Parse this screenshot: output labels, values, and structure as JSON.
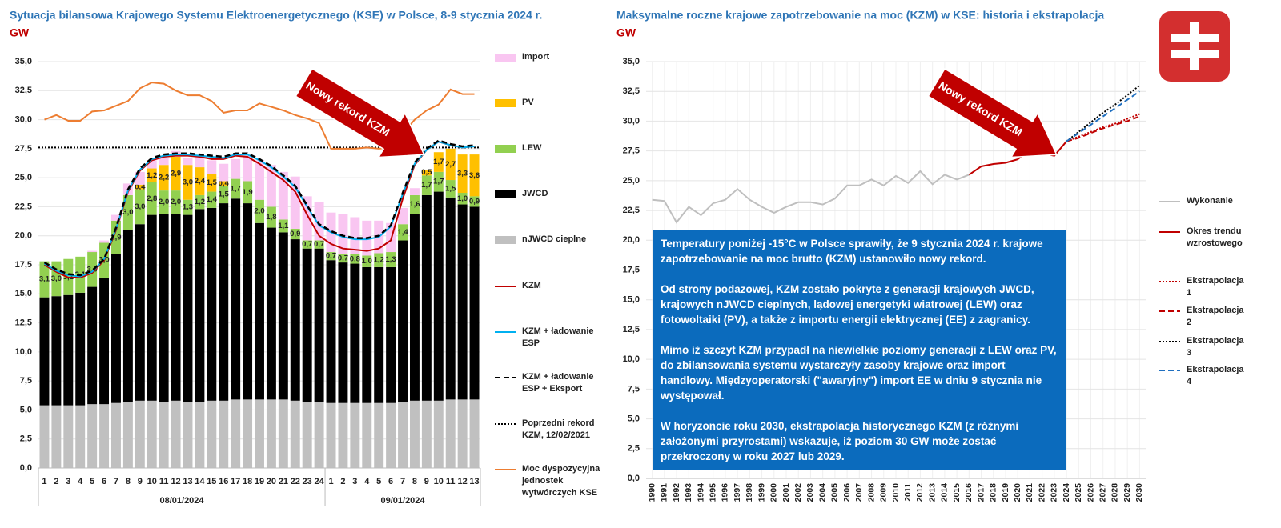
{
  "chart_data": [
    {
      "type": "bar",
      "stacked": true,
      "title": "Sytuacja bilansowa Krajowego Systemu Elektroenergetycznego (KSE) w Polsce, 8-9 stycznia 2024 r.",
      "unit": "GW",
      "annotation": "Nowy rekord KZM",
      "categories": [
        "1",
        "2",
        "3",
        "4",
        "5",
        "6",
        "7",
        "8",
        "9",
        "10",
        "11",
        "12",
        "13",
        "14",
        "15",
        "16",
        "17",
        "18",
        "19",
        "20",
        "21",
        "22",
        "23",
        "24",
        "1",
        "2",
        "3",
        "4",
        "5",
        "6",
        "7",
        "8",
        "9",
        "10",
        "11",
        "12",
        "13"
      ],
      "x_groups": [
        "08/01/2024",
        "09/01/2024"
      ],
      "ylim": [
        0,
        35
      ],
      "yticks": [
        {
          "value": 0,
          "label": "0,0"
        },
        {
          "value": 2.5,
          "label": "2,5"
        },
        {
          "value": 5,
          "label": "5,0"
        },
        {
          "value": 7.5,
          "label": "7,5"
        },
        {
          "value": 10,
          "label": "10,0"
        },
        {
          "value": 12.5,
          "label": "12,5"
        },
        {
          "value": 15,
          "label": "15,0"
        },
        {
          "value": 17.5,
          "label": "17,5"
        },
        {
          "value": 20,
          "label": "20,0"
        },
        {
          "value": 22.5,
          "label": "22,5"
        },
        {
          "value": 25,
          "label": "25,0"
        },
        {
          "value": 27.5,
          "label": "27,5"
        },
        {
          "value": 30,
          "label": "30,0"
        },
        {
          "value": 32.5,
          "label": "32,5"
        },
        {
          "value": 35,
          "label": "35,0"
        }
      ],
      "grid": true,
      "series": [
        {
          "name": "nJWCD cieplne",
          "color": "#c0c0c0",
          "values": [
            5.4,
            5.4,
            5.4,
            5.4,
            5.5,
            5.5,
            5.6,
            5.7,
            5.8,
            5.8,
            5.7,
            5.8,
            5.7,
            5.7,
            5.8,
            5.8,
            5.9,
            5.9,
            5.9,
            5.9,
            5.9,
            5.8,
            5.7,
            5.7,
            5.6,
            5.6,
            5.6,
            5.6,
            5.6,
            5.6,
            5.7,
            5.8,
            5.8,
            5.8,
            5.9,
            5.9,
            5.9
          ]
        },
        {
          "name": "JWCD",
          "color": "#000000",
          "values": [
            9.3,
            9.4,
            9.5,
            9.7,
            10.1,
            10.9,
            12.8,
            14.8,
            15.2,
            16.0,
            16.2,
            16.1,
            16.1,
            16.6,
            16.6,
            17.0,
            17.3,
            16.9,
            15.2,
            14.8,
            14.4,
            13.9,
            13.2,
            13.2,
            12.3,
            12.1,
            12.0,
            11.7,
            11.7,
            11.7,
            13.9,
            16.1,
            17.7,
            18.0,
            17.4,
            16.8,
            16.6
          ]
        },
        {
          "name": "LEW",
          "color": "#92d050",
          "values": [
            3.1,
            3.0,
            3.1,
            3.1,
            3.0,
            3.0,
            2.9,
            3.0,
            3.0,
            2.8,
            2.0,
            2.0,
            1.3,
            1.2,
            1.4,
            1.5,
            1.7,
            1.9,
            2.0,
            1.8,
            1.1,
            0.9,
            0.7,
            0.7,
            0.7,
            0.7,
            0.8,
            1.0,
            1.2,
            1.3,
            1.4,
            1.6,
            1.7,
            1.7,
            1.5,
            1.0,
            0.9
          ],
          "value_labels": [
            "3,1",
            "3,0",
            "3,1",
            "3,1",
            "3,0",
            "3,0",
            "2,9",
            "3,0",
            "3,0",
            "2,8",
            "2,0",
            "2,0",
            "1,3",
            "1,2",
            "1,4",
            "1,5",
            "1,7",
            "1,9",
            "2,0",
            "1,8",
            "1,1",
            "0,9",
            "0,7",
            "0,7",
            "0,7",
            "0,7",
            "0,8",
            "1,0",
            "1,2",
            "1,3",
            "1,4",
            "1,6",
            "1,7",
            "1,7",
            "1,5",
            "1,0",
            "0,9"
          ]
        },
        {
          "name": "PV",
          "color": "#ffc000",
          "values": [
            0,
            0,
            0,
            0,
            0,
            0,
            0,
            0,
            0.4,
            1.2,
            2.2,
            2.9,
            3.0,
            2.4,
            1.5,
            0.4,
            0,
            0,
            0,
            0,
            0,
            0,
            0,
            0,
            0,
            0,
            0,
            0,
            0,
            0,
            0,
            0,
            0.5,
            1.7,
            2.7,
            3.3,
            3.6
          ],
          "value_labels": [
            null,
            null,
            null,
            null,
            null,
            null,
            null,
            null,
            "0,4",
            "1,2",
            "2,2",
            "2,9",
            "3,0",
            "2,4",
            "1,5",
            "0,4",
            null,
            null,
            null,
            null,
            null,
            null,
            null,
            null,
            null,
            null,
            null,
            null,
            null,
            null,
            null,
            null,
            "0,5",
            "1,7",
            "2,7",
            "3,3",
            "3,6"
          ]
        },
        {
          "name": "Import",
          "color": "#f9c6f1",
          "values": [
            0,
            0,
            0,
            0,
            0.1,
            0.2,
            0.5,
            1.0,
            1.1,
            0.7,
            0.6,
            0.5,
            0.6,
            0.9,
            1.2,
            1.5,
            1.7,
            2.2,
            3.4,
            3.6,
            4.1,
            4.5,
            3.8,
            3.3,
            3.4,
            3.5,
            3.2,
            3.0,
            2.8,
            2.5,
            1.4,
            0.6,
            0,
            0,
            0,
            0,
            0
          ]
        }
      ],
      "lines": [
        {
          "name": "KZM",
          "color": "#c00000",
          "dash": "solid",
          "values": [
            17.5,
            16.9,
            16.4,
            16.4,
            16.8,
            17.9,
            20.5,
            23.8,
            25.6,
            26.5,
            26.8,
            26.9,
            26.9,
            26.8,
            26.6,
            26.6,
            26.9,
            26.8,
            26.2,
            25.5,
            24.8,
            23.8,
            21.8,
            20.0,
            19.3,
            18.9,
            18.8,
            18.7,
            18.9,
            19.6,
            23.2,
            26.1,
            27.4,
            28.1,
            27.8,
            27.6,
            27.7
          ]
        },
        {
          "name": "KZM + ładowanie ESP",
          "color": "#00b0f0",
          "dash": "solid",
          "values": [
            17.6,
            17.0,
            16.6,
            16.5,
            16.9,
            18.0,
            20.6,
            23.9,
            25.7,
            26.6,
            26.9,
            27.0,
            27.0,
            26.9,
            26.8,
            26.7,
            27.0,
            27.0,
            26.5,
            25.9,
            25.1,
            24.2,
            22.5,
            20.9,
            20.3,
            19.9,
            19.7,
            19.7,
            19.9,
            20.8,
            23.6,
            26.2,
            27.4,
            28.1,
            27.8,
            27.6,
            27.7
          ]
        },
        {
          "name": "KZM + ładowanie ESP + Eksport",
          "color": "#000000",
          "dash": "dashed",
          "values": [
            17.7,
            17.1,
            16.7,
            16.6,
            17.0,
            18.0,
            20.7,
            24.0,
            25.8,
            26.7,
            27.0,
            27.1,
            27.1,
            27.0,
            26.9,
            26.8,
            27.1,
            27.1,
            26.6,
            26.0,
            25.2,
            24.3,
            22.6,
            21.0,
            20.4,
            20.0,
            19.8,
            19.8,
            20.0,
            20.9,
            23.7,
            26.3,
            27.5,
            28.2,
            27.9,
            27.7,
            27.8
          ]
        },
        {
          "name": "Moc dyspozycyjna jednostek wytwórczych KSE",
          "color": "#ed7d31",
          "dash": "solid",
          "values": [
            30.0,
            30.4,
            29.9,
            29.9,
            30.7,
            30.8,
            31.2,
            31.6,
            32.7,
            33.2,
            33.1,
            32.5,
            32.1,
            32.1,
            31.6,
            30.6,
            30.8,
            30.8,
            31.4,
            31.1,
            30.8,
            30.4,
            30.1,
            29.7,
            27.5,
            27.5,
            27.5,
            27.6,
            27.5,
            27.6,
            28.8,
            30.0,
            30.8,
            31.3,
            32.6,
            32.2,
            32.2
          ]
        }
      ],
      "reference": {
        "name": "Poprzedni rekord KZM, 12/02/2021",
        "value": 27.6,
        "color": "#000000",
        "dash": "dotted"
      }
    },
    {
      "type": "line",
      "title": "Maksymalne roczne krajowe zapotrzebowanie na moc (KZM) w KSE: historia i ekstrapolacja",
      "unit": "GW",
      "annotation": "Nowy rekord KZM",
      "text_box": [
        "Temperatury poniżej -15°C w Polsce sprawiły, że 9 stycznia 2024 r. krajowe zapotrzebowanie na moc brutto (KZM) ustanowiło nowy rekord.",
        "Od strony podazowej, KZM zostało pokryte z generacji krajowych JWCD, krajowych nJWCD cieplnych, lądowej energetyki wiatrowej (LEW) oraz fotowoltaiki (PV), a także z importu energii elektrycznej (EE) z zagranicy.",
        "Mimo iż szczyt KZM przypadł na niewielkie poziomy generacji z LEW oraz PV, do zbilansowania systemu wystarczyły zasoby krajowe oraz import handlowy. Międzyoperatorski (\"awaryjny\") import EE w dniu 9 stycznia nie występował.",
        "W horyzoncie roku 2030, ekstrapolacja historycznego KZM (z różnymi założonymi przyrostami) wskazuje, iż poziom 30 GW może zostać przekroczony w roku 2027 lub 2029."
      ],
      "x": [
        1990,
        1991,
        1992,
        1993,
        1994,
        1995,
        1996,
        1997,
        1998,
        1999,
        2000,
        2001,
        2002,
        2003,
        2004,
        2005,
        2006,
        2007,
        2008,
        2009,
        2010,
        2011,
        2012,
        2013,
        2014,
        2015,
        2016,
        2017,
        2018,
        2019,
        2020,
        2021,
        2022,
        2023,
        2024,
        2025,
        2026,
        2027,
        2028,
        2029,
        2030
      ],
      "xlim": [
        1989.5,
        2030.5
      ],
      "xticks": [
        1990,
        1991,
        1992,
        1993,
        1994,
        1995,
        1996,
        1997,
        1998,
        1999,
        2000,
        2001,
        2002,
        2003,
        2004,
        2005,
        2006,
        2007,
        2008,
        2009,
        2010,
        2011,
        2012,
        2013,
        2014,
        2015,
        2016,
        2017,
        2018,
        2019,
        2020,
        2021,
        2022,
        2023,
        2024,
        2025,
        2026,
        2027,
        2028,
        2029,
        2030
      ],
      "ylim": [
        0,
        35
      ],
      "yticks": [
        {
          "value": 0,
          "label": "0,0"
        },
        {
          "value": 2.5,
          "label": "2,5"
        },
        {
          "value": 5,
          "label": "5,0"
        },
        {
          "value": 7.5,
          "label": "7,5"
        },
        {
          "value": 10,
          "label": "10,0"
        },
        {
          "value": 12.5,
          "label": "12,5"
        },
        {
          "value": 15,
          "label": "15,0"
        },
        {
          "value": 17.5,
          "label": "17,5"
        },
        {
          "value": 20,
          "label": "20,0"
        },
        {
          "value": 22.5,
          "label": "22,5"
        },
        {
          "value": 25,
          "label": "25,0"
        },
        {
          "value": 27.5,
          "label": "27,5"
        },
        {
          "value": 30,
          "label": "30,0"
        },
        {
          "value": 32.5,
          "label": "32,5"
        },
        {
          "value": 35,
          "label": "35,0"
        }
      ],
      "grid": true,
      "series": [
        {
          "name": "Wykonanie",
          "color": "#bfbfbf",
          "dash": "solid",
          "values": [
            23.4,
            23.3,
            21.5,
            22.8,
            22.1,
            23.1,
            23.4,
            24.3,
            23.4,
            22.8,
            22.3,
            22.8,
            23.2,
            23.2,
            23.0,
            23.5,
            24.6,
            24.6,
            25.1,
            24.6,
            25.4,
            24.8,
            25.8,
            24.7,
            25.5,
            25.1,
            25.5,
            null,
            null,
            null,
            null,
            null,
            null,
            null,
            null,
            null,
            null,
            null,
            null,
            null,
            null
          ]
        },
        {
          "name": "Okres trendu wzrostowego",
          "color": "#c00000",
          "dash": "solid",
          "values": [
            null,
            null,
            null,
            null,
            null,
            null,
            null,
            null,
            null,
            null,
            null,
            null,
            null,
            null,
            null,
            null,
            null,
            null,
            null,
            null,
            null,
            null,
            null,
            null,
            null,
            null,
            25.5,
            26.2,
            26.4,
            26.5,
            26.8,
            27.6,
            27.3,
            27.1,
            28.3,
            null,
            null,
            null,
            null,
            null,
            null
          ]
        },
        {
          "name": "Ekstrapolacja 1",
          "color": "#c00000",
          "dash": "dotted",
          "values": [
            null,
            null,
            null,
            null,
            null,
            null,
            null,
            null,
            null,
            null,
            null,
            null,
            null,
            null,
            null,
            null,
            null,
            null,
            null,
            null,
            null,
            null,
            null,
            null,
            null,
            null,
            null,
            null,
            null,
            null,
            null,
            null,
            null,
            null,
            28.3,
            28.7,
            29.1,
            29.5,
            29.8,
            30.2,
            30.6
          ]
        },
        {
          "name": "Ekstrapolacja 2",
          "color": "#c00000",
          "dash": "dashed",
          "values": [
            null,
            null,
            null,
            null,
            null,
            null,
            null,
            null,
            null,
            null,
            null,
            null,
            null,
            null,
            null,
            null,
            null,
            null,
            null,
            null,
            null,
            null,
            null,
            null,
            null,
            null,
            null,
            null,
            null,
            null,
            null,
            null,
            null,
            null,
            28.3,
            28.6,
            29.0,
            29.4,
            29.7,
            30.0,
            30.4
          ]
        },
        {
          "name": "Ekstrapolacja 3",
          "color": "#000000",
          "dash": "dotted",
          "values": [
            null,
            null,
            null,
            null,
            null,
            null,
            null,
            null,
            null,
            null,
            null,
            null,
            null,
            null,
            null,
            null,
            null,
            null,
            null,
            null,
            null,
            null,
            null,
            null,
            null,
            null,
            null,
            null,
            null,
            null,
            null,
            null,
            null,
            null,
            28.3,
            29.1,
            29.9,
            30.7,
            31.4,
            32.2,
            33.0
          ]
        },
        {
          "name": "Ekstrapolacja 4",
          "color": "#1f6fc0",
          "dash": "dashed",
          "values": [
            null,
            null,
            null,
            null,
            null,
            null,
            null,
            null,
            null,
            null,
            null,
            null,
            null,
            null,
            null,
            null,
            null,
            null,
            null,
            null,
            null,
            null,
            null,
            null,
            null,
            null,
            null,
            null,
            null,
            null,
            null,
            null,
            null,
            null,
            28.3,
            29.0,
            29.7,
            30.4,
            31.1,
            31.8,
            32.5
          ]
        }
      ]
    }
  ]
}
